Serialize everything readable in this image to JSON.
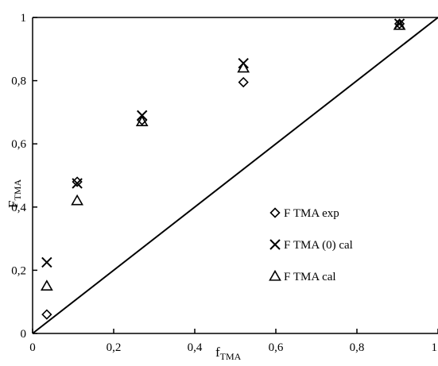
{
  "chart_data": {
    "type": "scatter",
    "title": "",
    "xlabel": "f",
    "xlabel_sub": "TMA",
    "ylabel": "F",
    "ylabel_sub": "TMA",
    "xlim": [
      0,
      1
    ],
    "ylim": [
      0,
      1
    ],
    "x_ticks": [
      {
        "value": 0,
        "label": "0"
      },
      {
        "value": 0.2,
        "label": "0,2"
      },
      {
        "value": 0.4,
        "label": "0,4"
      },
      {
        "value": 0.6,
        "label": "0,6"
      },
      {
        "value": 0.8,
        "label": "0,8"
      },
      {
        "value": 1,
        "label": "1"
      }
    ],
    "y_ticks": [
      {
        "value": 0,
        "label": "0"
      },
      {
        "value": 0.2,
        "label": "0,2"
      },
      {
        "value": 0.4,
        "label": "0,4"
      },
      {
        "value": 0.6,
        "label": "0,6"
      },
      {
        "value": 0.8,
        "label": "0,8"
      },
      {
        "value": 1,
        "label": "1"
      }
    ],
    "grid": false,
    "legend_position": "right",
    "reference_line": {
      "name": "",
      "x": [
        0,
        1
      ],
      "y": [
        0,
        1
      ]
    },
    "series": [
      {
        "name": "F TMA exp",
        "marker": "diamond",
        "x": [
          0.035,
          0.11,
          0.27,
          0.52,
          0.905
        ],
        "y": [
          0.06,
          0.48,
          0.675,
          0.795,
          0.98
        ]
      },
      {
        "name": "F TMA (0) cal",
        "marker": "x",
        "x": [
          0.035,
          0.11,
          0.27,
          0.52,
          0.905
        ],
        "y": [
          0.225,
          0.475,
          0.69,
          0.855,
          0.98
        ]
      },
      {
        "name": "F TMA cal",
        "marker": "triangle",
        "x": [
          0.035,
          0.11,
          0.27,
          0.52,
          0.905
        ],
        "y": [
          0.15,
          0.42,
          0.67,
          0.84,
          0.975
        ]
      }
    ]
  }
}
